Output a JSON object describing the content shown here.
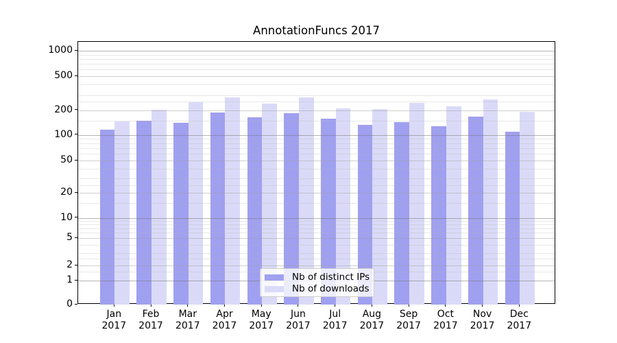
{
  "title": "AnnotationFuncs 2017",
  "chart_data": {
    "type": "bar",
    "title": "AnnotationFuncs 2017",
    "categories": [
      "Jan 2017",
      "Feb 2017",
      "Mar 2017",
      "Apr 2017",
      "May 2017",
      "Jun 2017",
      "Jul 2017",
      "Aug 2017",
      "Sep 2017",
      "Oct 2017",
      "Nov 2017",
      "Dec 2017"
    ],
    "series": [
      {
        "name": "Nb of distinct IPs",
        "color": "#a0a0f0",
        "values": [
          115,
          150,
          140,
          188,
          165,
          185,
          157,
          132,
          143,
          128,
          166,
          110
        ]
      },
      {
        "name": "Nb of downloads",
        "color": "#dadaf8",
        "values": [
          146,
          201,
          246,
          283,
          240,
          283,
          210,
          205,
          242,
          220,
          266,
          192
        ]
      }
    ],
    "xlabel": "",
    "ylabel": "",
    "yscale": "log above 1, linear 0-1 (symlog)",
    "y_ticks": [
      1000,
      500,
      200,
      100,
      50,
      20,
      10,
      5,
      2,
      1,
      0
    ],
    "y_tick_labels": [
      "1000",
      "500",
      "200",
      "100",
      "50",
      "20",
      "10",
      "5",
      "2",
      "1",
      "0"
    ],
    "ylim": [
      0,
      1280
    ],
    "grid": "horizontal major + minor, drawn over bars",
    "legend_position": "lower center inside plot"
  }
}
